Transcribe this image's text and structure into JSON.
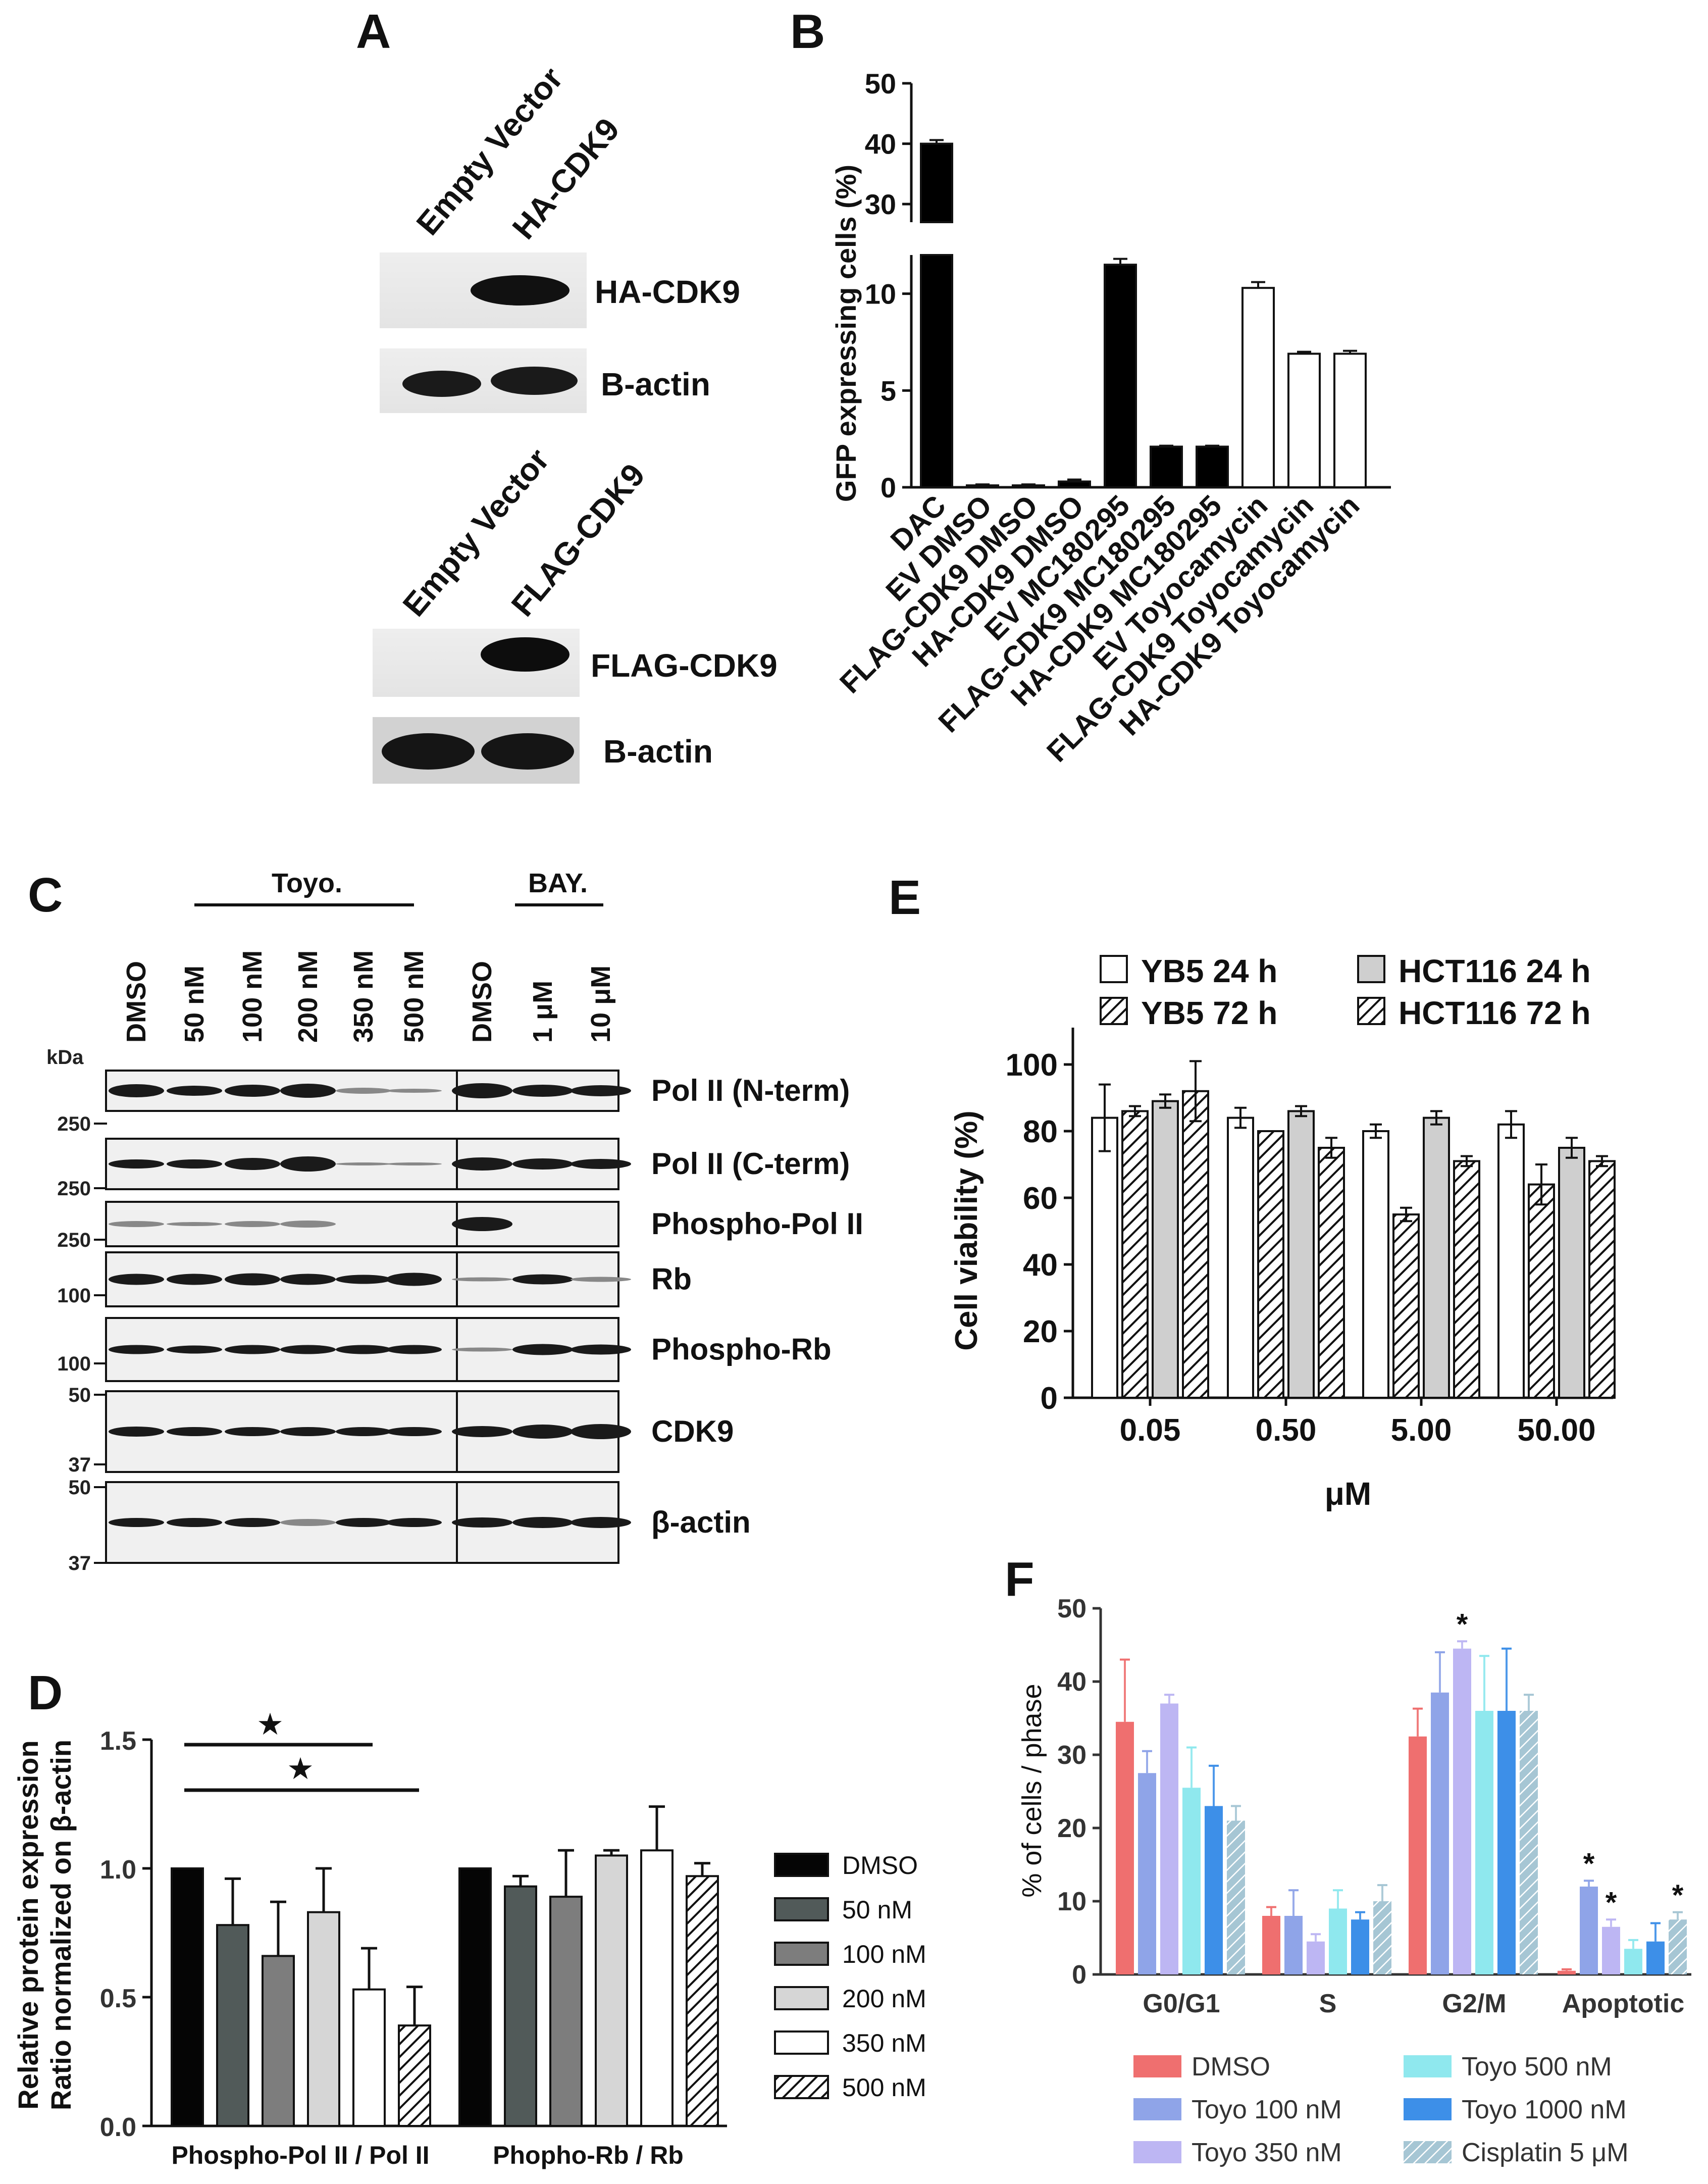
{
  "panels": {
    "A": "A",
    "B": "B",
    "C": "C",
    "D": "D",
    "E": "E",
    "F": "F"
  },
  "panel_a": {
    "blot1": {
      "lanes": [
        "Empty Vector",
        "HA-CDK9"
      ],
      "bands": [
        "HA-CDK9",
        "B-actin"
      ]
    },
    "blot2": {
      "lanes": [
        "Empty Vector",
        "FLAG-CDK9"
      ],
      "bands": [
        "FLAG-CDK9",
        "B-actin"
      ]
    }
  },
  "panel_c": {
    "groups": [
      "Toyo.",
      "BAY."
    ],
    "lanes": [
      "DMSO",
      "50 nM",
      "100 nM",
      "200 nM",
      "350 nM",
      "500 nM",
      "DMSO",
      "1 μM",
      "10 μM"
    ],
    "kda_title": "kDa",
    "bands": [
      "Pol II (N-term)",
      "Pol II (C-term)",
      "Phospho-Pol II",
      "Rb",
      "Phospho-Rb",
      "CDK9",
      "β-actin"
    ],
    "markers": [
      "250",
      "250",
      "250",
      "100",
      "100",
      "50",
      "37",
      "50",
      "37"
    ]
  },
  "chart_data": [
    {
      "panel": "B",
      "type": "bar",
      "categories": [
        "DAC",
        "EV DMSO",
        "FLAG-CDK9 DMSO",
        "HA-CDK9 DMSO",
        "EV MC180295",
        "FLAG-CDK9 MC180295",
        "HA-CDK9 MC180295",
        "EV Toyocamycin",
        "FLAG-CDK9 Toyocamycin",
        "HA-CDK9 Toyocamycin"
      ],
      "values": [
        40,
        0.1,
        0.1,
        0.3,
        11.5,
        2.1,
        2.1,
        10.3,
        6.9,
        6.9
      ],
      "errors": [
        0.6,
        0.05,
        0.05,
        0.1,
        0.3,
        0.05,
        0.05,
        0.3,
        0.1,
        0.15
      ],
      "fill": [
        "black",
        "black",
        "black",
        "black",
        "black",
        "black",
        "black",
        "white",
        "white",
        "white"
      ],
      "ylabel": "GFP expressing cells (%)",
      "ylim": [
        0,
        50
      ],
      "axis_break": [
        12,
        27
      ],
      "yticks_low": [
        "0",
        "5",
        "10"
      ],
      "yticks_high": [
        "30",
        "40",
        "50"
      ]
    },
    {
      "panel": "E",
      "type": "bar",
      "categories": [
        "0.05",
        "0.50",
        "5.00",
        "50.00"
      ],
      "xlabel": "μM",
      "ylabel": "Cell viability (%)",
      "ylim": [
        0,
        100
      ],
      "yticks": [
        "0",
        "20",
        "40",
        "60",
        "80",
        "100"
      ],
      "series": [
        {
          "name": "YB5 24 h",
          "values": [
            84,
            84,
            80,
            82
          ],
          "errors": [
            10,
            3,
            2,
            4
          ]
        },
        {
          "name": "YB5 72 h",
          "values": [
            86,
            80,
            55,
            64
          ],
          "errors": [
            1.5,
            0,
            2,
            6
          ]
        },
        {
          "name": "HCT116 24 h",
          "values": [
            89,
            86,
            84,
            75
          ],
          "errors": [
            2,
            1.5,
            2,
            3
          ]
        },
        {
          "name": "HCT116 72 h",
          "values": [
            92,
            75,
            71,
            71
          ],
          "errors": [
            9,
            3,
            1.5,
            1.5
          ]
        }
      ],
      "legend_order": [
        "YB5 24 h",
        "HCT116 24 h",
        "YB5 72 h",
        "HCT116 72 h"
      ]
    },
    {
      "panel": "D",
      "type": "bar",
      "categories": [
        "Phospho-Pol II / Pol II",
        "Phopho-Rb / Rb"
      ],
      "ylabel": [
        "Relative protein expression",
        "Ratio normalized on β-actin"
      ],
      "ylim": [
        0,
        1.5
      ],
      "yticks": [
        "0.0",
        "0.5",
        "1.0",
        "1.5"
      ],
      "series": [
        {
          "name": "DMSO",
          "values": [
            1.0,
            1.0
          ],
          "errors": [
            0,
            0
          ]
        },
        {
          "name": "50 nM",
          "values": [
            0.78,
            0.93
          ],
          "errors": [
            0.18,
            0.04
          ]
        },
        {
          "name": "100 nM",
          "values": [
            0.66,
            0.89
          ],
          "errors": [
            0.21,
            0.18
          ]
        },
        {
          "name": "200 nM",
          "values": [
            0.83,
            1.05
          ],
          "errors": [
            0.17,
            0.02
          ]
        },
        {
          "name": "350 nM",
          "values": [
            0.53,
            1.07
          ],
          "errors": [
            0.16,
            0.17
          ]
        },
        {
          "name": "500 nM",
          "values": [
            0.39,
            0.97
          ],
          "errors": [
            0.15,
            0.05
          ]
        }
      ],
      "significance_mark": "★"
    },
    {
      "panel": "F",
      "type": "bar",
      "categories": [
        "G0/G1",
        "S",
        "G2/M",
        "Apoptotic"
      ],
      "ylabel": "% of cells / phase",
      "ylim": [
        0,
        50
      ],
      "yticks": [
        "0",
        "10",
        "20",
        "30",
        "40",
        "50"
      ],
      "series": [
        {
          "name": "DMSO",
          "color": "#ef6f6f",
          "values": [
            34.5,
            8,
            32.5,
            0.5
          ],
          "errors": [
            8.5,
            1.2,
            3.8,
            0.2
          ]
        },
        {
          "name": "Toyo 100 nM",
          "color": "#8fa4e8",
          "values": [
            27.5,
            8,
            38.5,
            12
          ],
          "errors": [
            3,
            3.5,
            5.5,
            0.8
          ]
        },
        {
          "name": "Toyo 350 nM",
          "color": "#bdb6f3",
          "values": [
            37,
            4.5,
            44.5,
            6.5
          ],
          "errors": [
            1.2,
            1,
            1,
            1
          ]
        },
        {
          "name": "Toyo 500 nM",
          "color": "#8fe8ee",
          "values": [
            25.5,
            9,
            36,
            3.5
          ],
          "errors": [
            5.5,
            2.5,
            7.5,
            1.2
          ]
        },
        {
          "name": "Toyo 1000 nM",
          "color": "#3d8fe8",
          "values": [
            23,
            7.5,
            36,
            4.5
          ],
          "errors": [
            5.5,
            1,
            8.5,
            2.5
          ]
        },
        {
          "name": "Cisplatin 5 μM",
          "color": "#a6c6d4",
          "values": [
            21,
            10,
            36,
            7.5
          ],
          "errors": [
            2,
            2.2,
            2.2,
            1
          ]
        }
      ],
      "significance_mark": "*"
    }
  ]
}
